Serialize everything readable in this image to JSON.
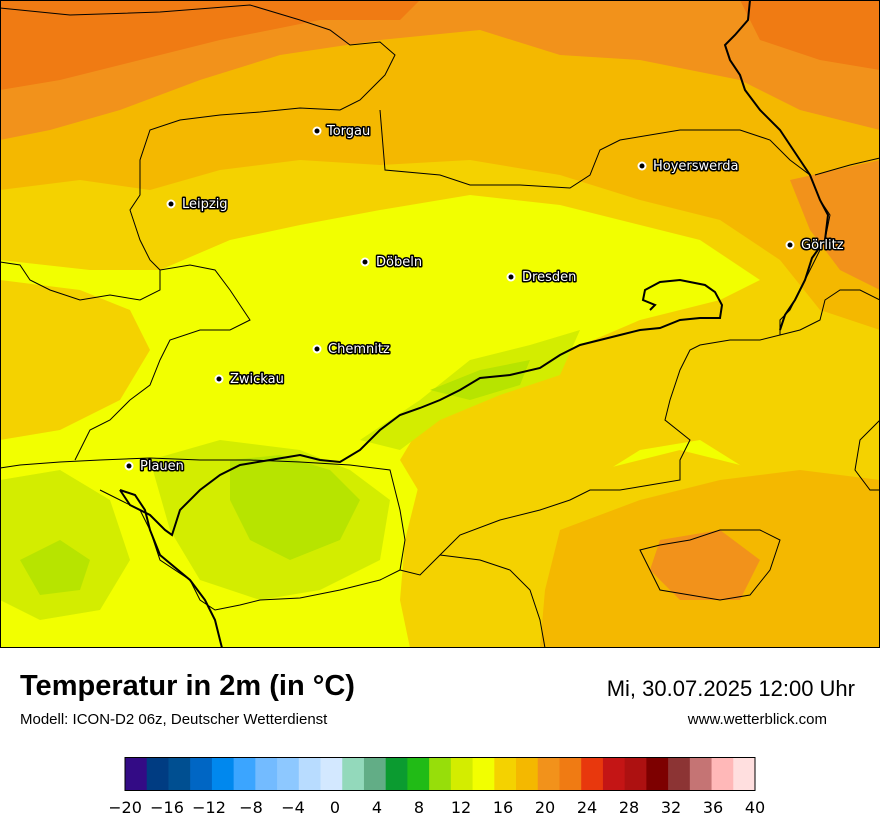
{
  "header": {
    "title": "Temperatur in 2m (in °C)",
    "subtitle": "Modell: ICON-D2 06z, Deutscher Wetterdienst",
    "datetime": "Mi, 30.07.2025 12:00 Uhr",
    "website": "www.wetterblick.com"
  },
  "cities": [
    {
      "name": "Torgau"
    },
    {
      "name": "Hoyerswerda"
    },
    {
      "name": "Leipzig"
    },
    {
      "name": "Görlitz"
    },
    {
      "name": "Döbeln"
    },
    {
      "name": "Dresden"
    },
    {
      "name": "Chemnitz"
    },
    {
      "name": "Zwickau"
    },
    {
      "name": "Plauen"
    }
  ],
  "legend": {
    "ticks": [
      "−20",
      "−16",
      "−12",
      "−8",
      "−4",
      "0",
      "4",
      "8",
      "12",
      "16",
      "20",
      "24",
      "28",
      "32",
      "36",
      "40"
    ],
    "colors": [
      "#330b85",
      "#003c82",
      "#004f91",
      "#0066c4",
      "#0088ee",
      "#3ba5ff",
      "#73bbff",
      "#8dc8ff",
      "#b8dcff",
      "#d3e8ff",
      "#93d9bb",
      "#62ad86",
      "#0b9b30",
      "#21bb16",
      "#97de0a",
      "#d3ed00",
      "#f2ff00",
      "#f4d200",
      "#f4b800",
      "#f2921b",
      "#f07b13",
      "#e8380d",
      "#c41515",
      "#ad1111",
      "#7d0000",
      "#8c3434",
      "#c57474",
      "#ffb8b8",
      "#ffdfdf"
    ]
  }
}
